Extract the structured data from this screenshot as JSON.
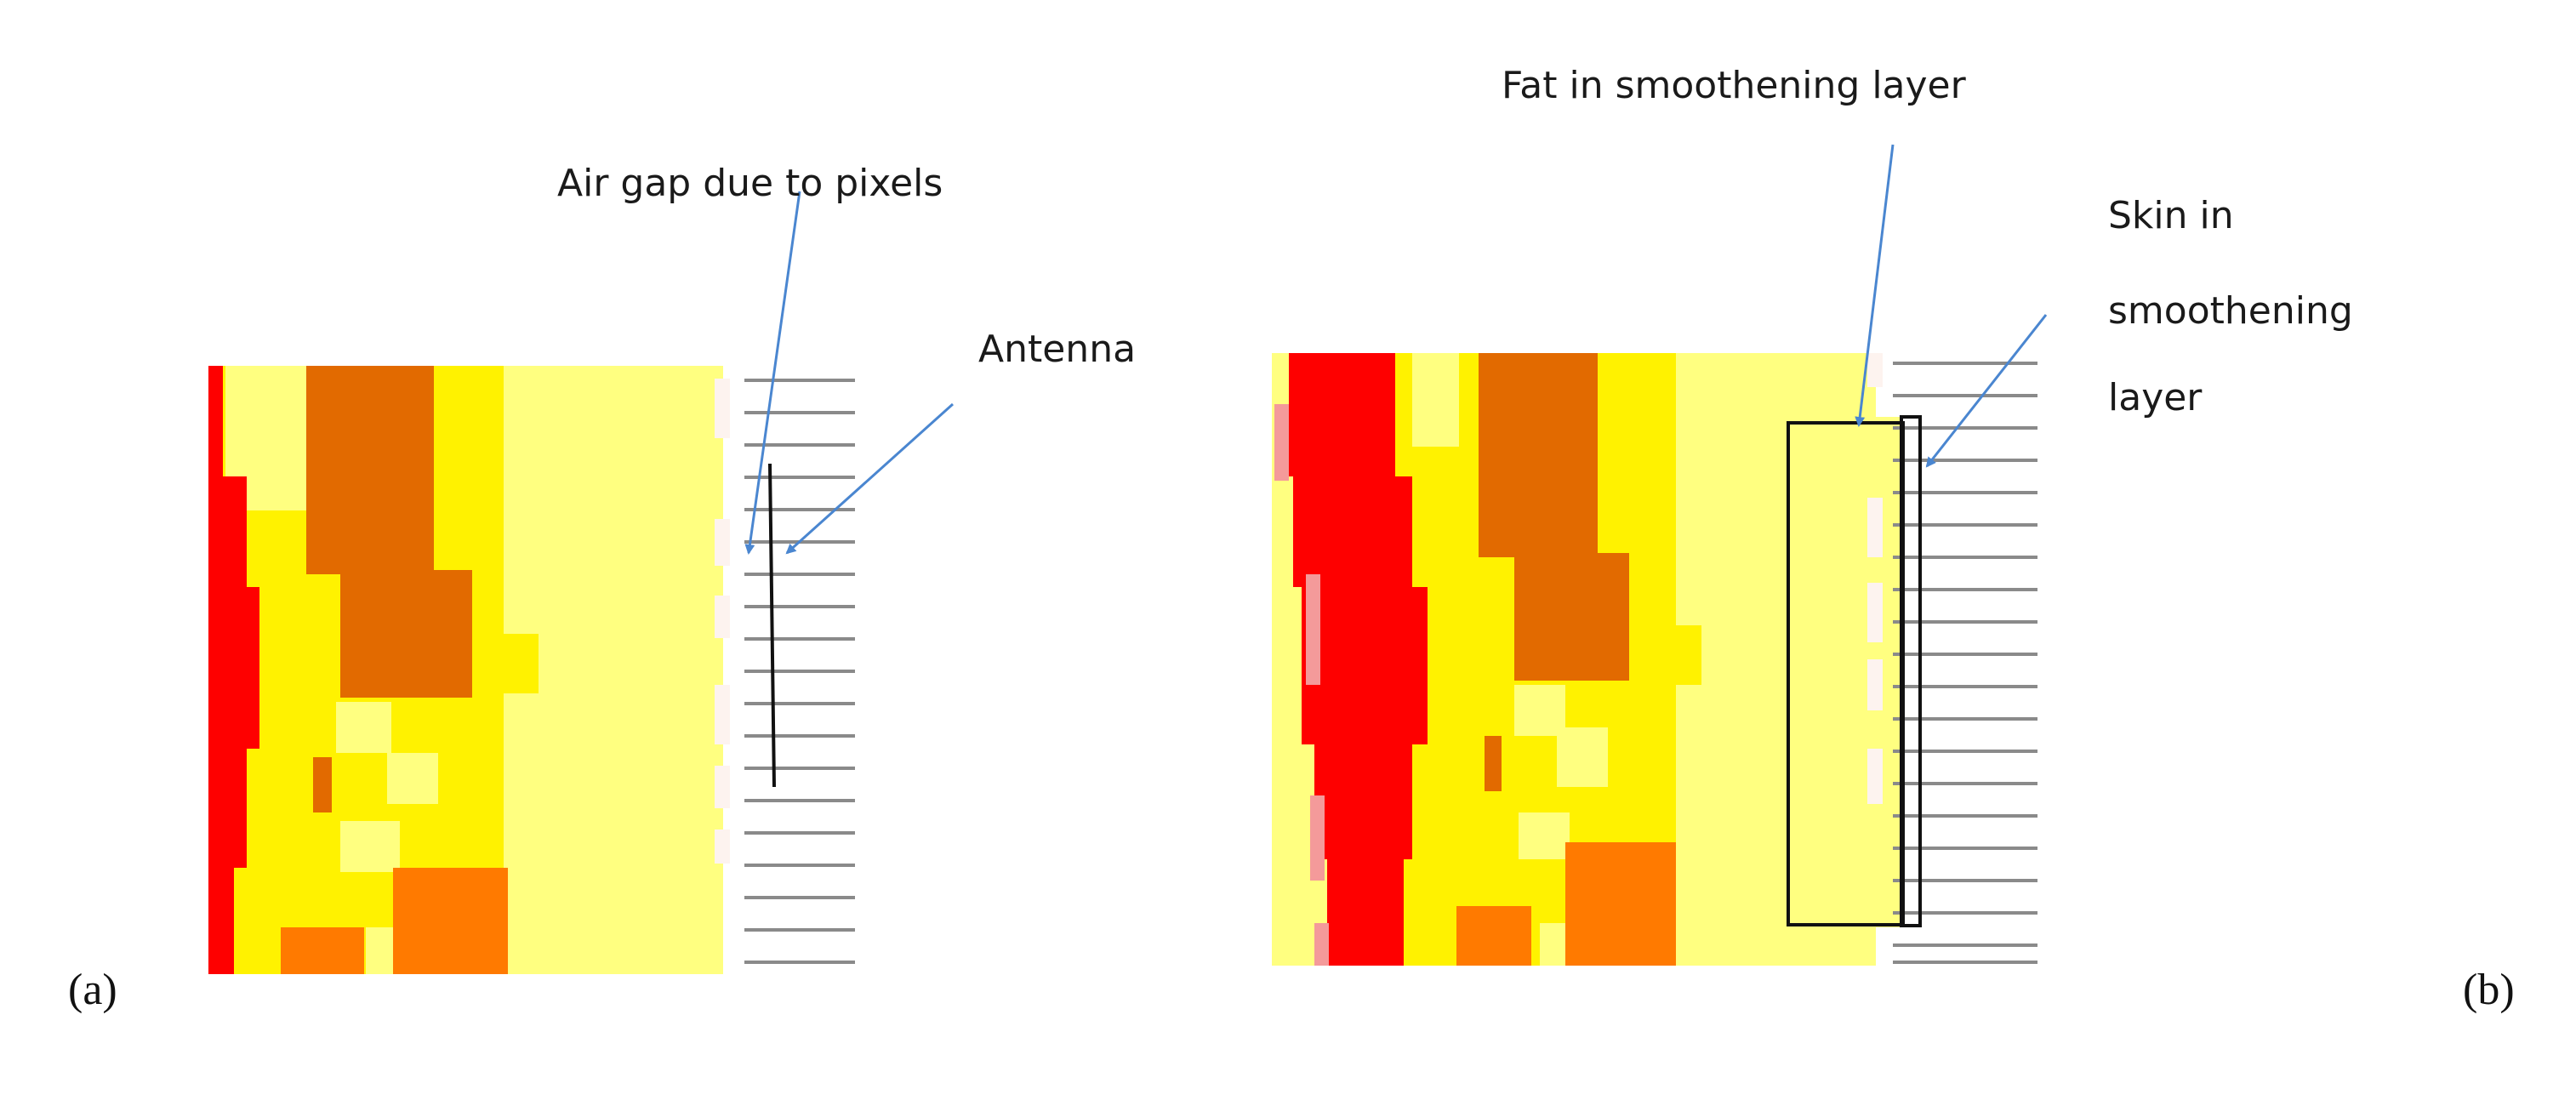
{
  "colors": {
    "muscle": "#fe0000",
    "fat": "#fff200",
    "fat_light": "#ffff80",
    "tissue_dark": "#e26a00",
    "tissue_orange": "#ff7a00",
    "skin_pink": "#f49a9a",
    "air": "#fdf3ef",
    "arrow": "#4a86d0",
    "antenna": "#111111"
  },
  "panel_a": {
    "label": "(a)",
    "annotation_air_gap": "Air gap due to pixels",
    "annotation_antenna": "Antenna"
  },
  "panel_b": {
    "label": "(b)",
    "annotation_fat": "Fat in smoothening layer",
    "annotation_skin_lines": [
      "Skin in",
      "smoothening",
      "layer"
    ]
  }
}
